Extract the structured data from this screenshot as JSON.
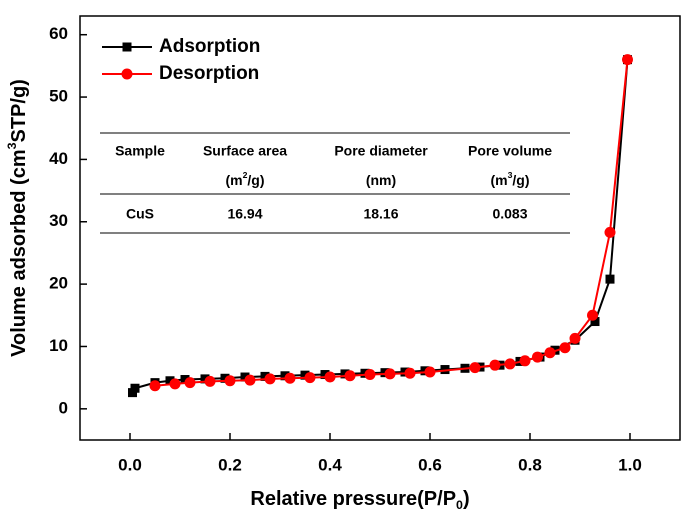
{
  "chart_data": {
    "type": "line",
    "xlabel": [
      "Relative pressure(P/P",
      "0",
      ")"
    ],
    "ylabel": [
      "Volume adsorbed (cm",
      "3",
      "STP/g)"
    ],
    "xlim": [
      -0.1,
      1.1
    ],
    "ylim": [
      -5,
      63
    ],
    "xticks": [
      {
        "value": 0,
        "label": "0.0"
      },
      0.2,
      0.4,
      0.6,
      0.8,
      {
        "value": 1,
        "label": "1.0"
      }
    ],
    "yticks": [
      0,
      10,
      20,
      30,
      40,
      50,
      60
    ],
    "legend": "upper left",
    "series": [
      {
        "name": "Adsorption",
        "color": "#000000",
        "marker": "square",
        "x": [
          0.005,
          0.01,
          0.05,
          0.08,
          0.11,
          0.15,
          0.19,
          0.23,
          0.27,
          0.31,
          0.35,
          0.39,
          0.43,
          0.47,
          0.51,
          0.55,
          0.59,
          0.63,
          0.67,
          0.7,
          0.74,
          0.78,
          0.82,
          0.85,
          0.89,
          0.93,
          0.96,
          0.995
        ],
        "values": [
          2.6,
          3.3,
          4.2,
          4.5,
          4.7,
          4.8,
          4.9,
          5.1,
          5.2,
          5.3,
          5.4,
          5.5,
          5.6,
          5.7,
          5.8,
          5.9,
          6.1,
          6.3,
          6.5,
          6.7,
          7.0,
          7.6,
          8.3,
          9.4,
          11.0,
          14.0,
          20.8,
          56
        ]
      },
      {
        "name": "Desorption",
        "color": "#ff0000",
        "marker": "circle",
        "x": [
          0.995,
          0.96,
          0.925,
          0.89,
          0.87,
          0.84,
          0.815,
          0.79,
          0.76,
          0.73,
          0.69,
          0.6,
          0.56,
          0.52,
          0.48,
          0.44,
          0.4,
          0.36,
          0.32,
          0.28,
          0.24,
          0.2,
          0.16,
          0.12,
          0.09,
          0.05
        ],
        "values": [
          56,
          28.3,
          15.0,
          11.3,
          9.8,
          9.0,
          8.3,
          7.7,
          7.2,
          7.0,
          6.6,
          5.9,
          5.7,
          5.6,
          5.5,
          5.3,
          5.1,
          5.0,
          4.9,
          4.8,
          4.6,
          4.5,
          4.4,
          4.2,
          4.0,
          3.7
        ]
      }
    ],
    "table": {
      "headers": [
        "Sample",
        "Surface area",
        "Pore diameter",
        "Pore volume"
      ],
      "units": [
        [
          "(m",
          "2",
          "/g)"
        ],
        [
          "(nm)"
        ],
        [
          "(m",
          "3",
          "/g)"
        ]
      ],
      "rows": [
        [
          "CuS",
          16.94,
          18.16,
          0.083
        ]
      ]
    }
  }
}
